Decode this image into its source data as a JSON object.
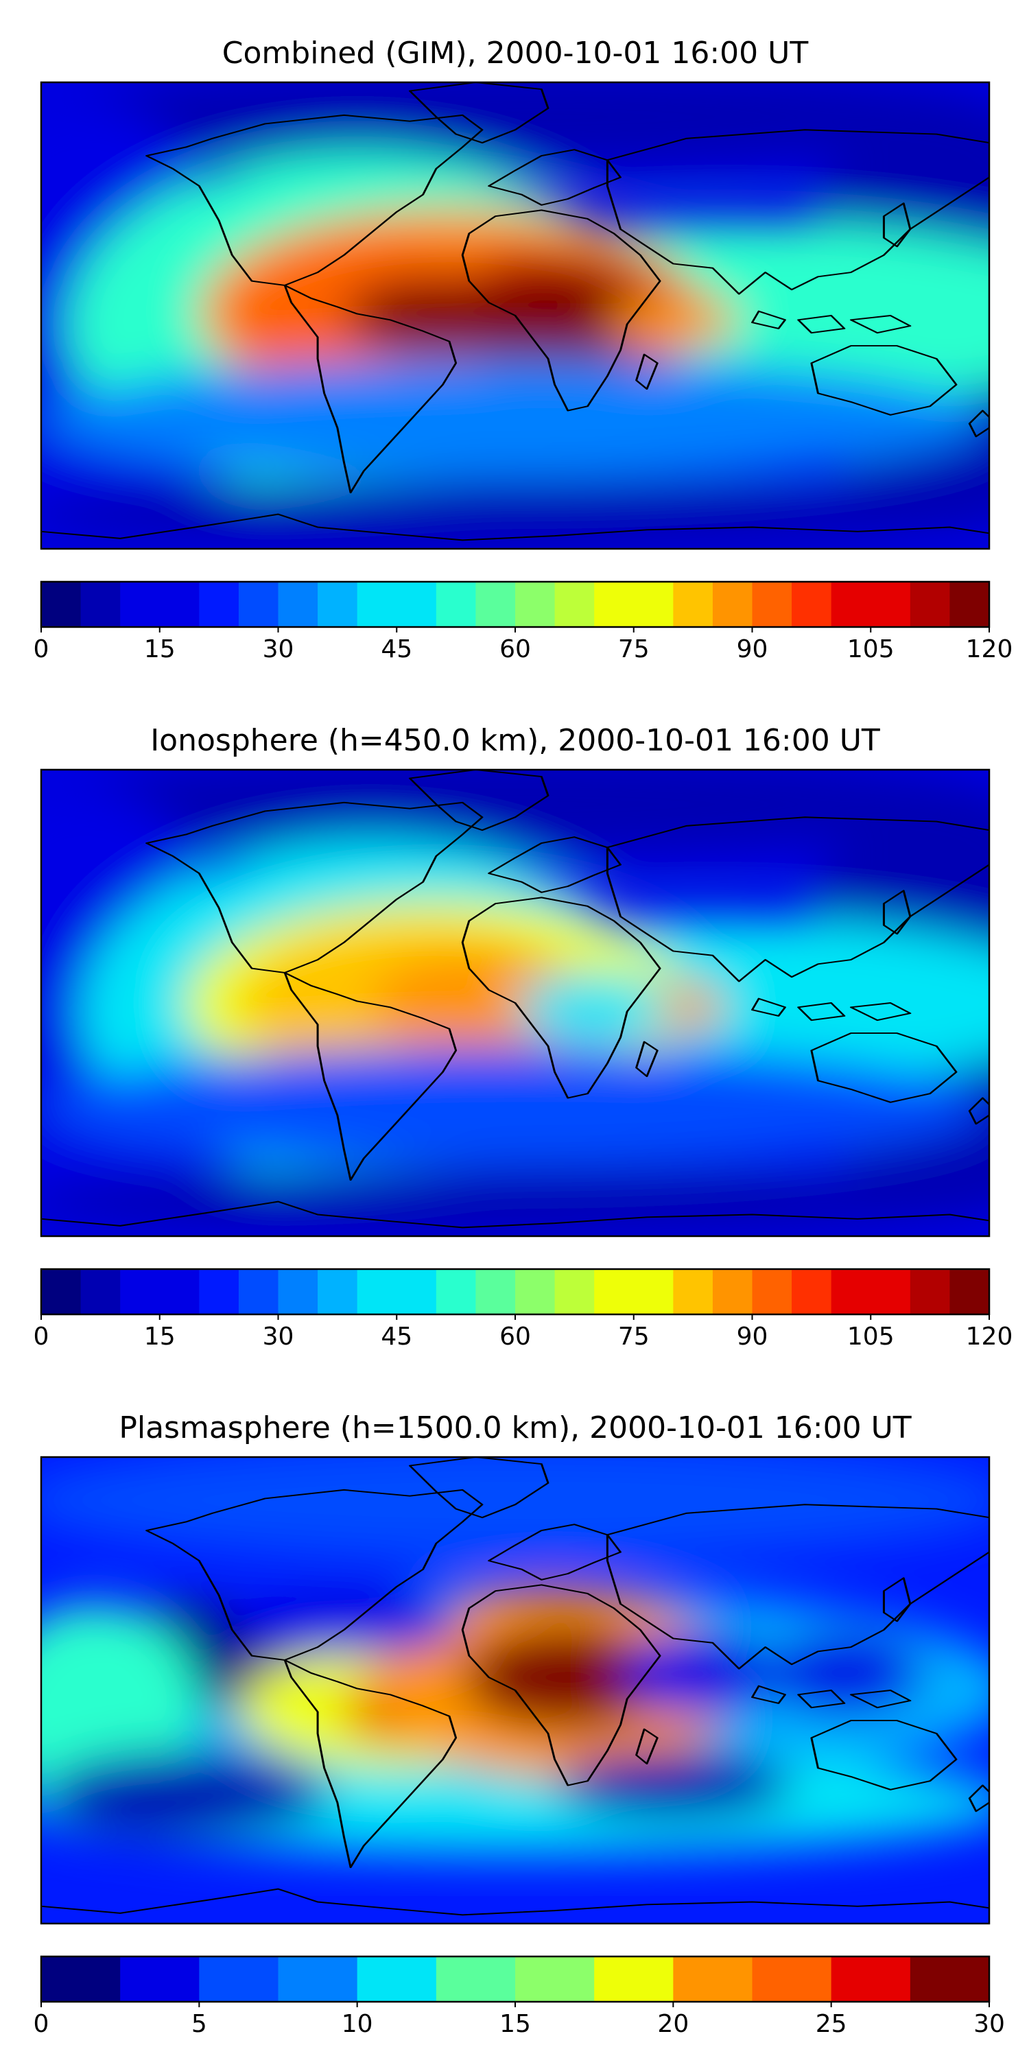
{
  "chart_data": [
    {
      "type": "heatmap",
      "title": "Combined (GIM), 2000-10-01 16:00 UT",
      "colorbar": {
        "levels": [
          0,
          5,
          10,
          15,
          20,
          25,
          30,
          35,
          40,
          45,
          50,
          55,
          60,
          65,
          70,
          75,
          80,
          85,
          90,
          95,
          100,
          105,
          110,
          115,
          120
        ],
        "ticks": [
          0,
          15,
          30,
          45,
          60,
          75,
          90,
          105,
          120
        ],
        "range": [
          0,
          120
        ]
      },
      "maxima": [
        {
          "region": "tropical South America / equatorial Atlantic / central Africa",
          "value": 115
        },
        {
          "region": "Indian Ocean",
          "value": 85
        }
      ],
      "minima": [
        {
          "region": "polar regions / Pacific night side",
          "value": 5
        }
      ]
    },
    {
      "type": "heatmap",
      "title": "Ionosphere  (h=450.0 km), 2000-10-01 16:00 UT",
      "colorbar": {
        "levels": [
          0,
          5,
          10,
          15,
          20,
          25,
          30,
          35,
          40,
          45,
          50,
          55,
          60,
          65,
          70,
          75,
          80,
          85,
          90,
          95,
          100,
          105,
          110,
          115,
          120
        ],
        "ticks": [
          0,
          15,
          30,
          45,
          60,
          75,
          90,
          105,
          120
        ],
        "range": [
          0,
          120
        ]
      },
      "maxima": [
        {
          "region": "tropical South America / equatorial Atlantic",
          "value": 90
        },
        {
          "region": "Indian Ocean",
          "value": 82
        }
      ],
      "minima": [
        {
          "region": "polar regions / Pacific night side",
          "value": 5
        }
      ]
    },
    {
      "type": "heatmap",
      "title": "Plasmasphere (h=1500.0 km), 2000-10-01 16:00 UT",
      "colorbar": {
        "levels": [
          0,
          2.5,
          5,
          7.5,
          10,
          12.5,
          15,
          17.5,
          20,
          22.5,
          25,
          27.5,
          30
        ],
        "ticks": [
          0,
          5,
          10,
          15,
          20,
          25,
          30
        ],
        "range": [
          0,
          30
        ]
      },
      "maxima": [
        {
          "region": "north-east Africa",
          "value": 29
        },
        {
          "region": "Brazil",
          "value": 26
        }
      ],
      "minima": [
        {
          "region": "North Pacific / North Atlantic",
          "value": 2
        },
        {
          "region": "India",
          "value": 3
        }
      ]
    }
  ]
}
